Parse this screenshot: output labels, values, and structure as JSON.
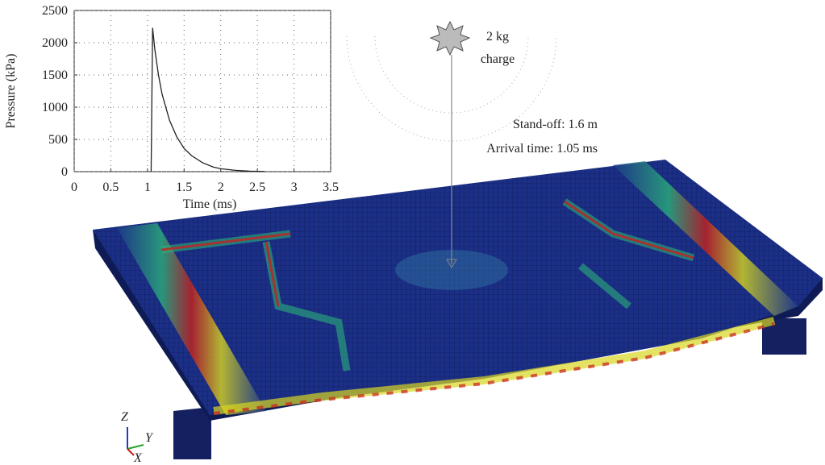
{
  "chart_data": {
    "type": "line",
    "xlabel": "Time (ms)",
    "ylabel": "Pressure (kPa)",
    "x": [
      1.05,
      1.07,
      1.1,
      1.15,
      1.2,
      1.3,
      1.4,
      1.5,
      1.6,
      1.75,
      1.9,
      2.0,
      2.2,
      2.4,
      2.6
    ],
    "values": [
      0,
      2230,
      1900,
      1500,
      1200,
      800,
      540,
      360,
      250,
      140,
      70,
      45,
      20,
      8,
      3
    ],
    "color": "#222222",
    "xlim": [
      0,
      3.5
    ],
    "ylim": [
      0,
      2500
    ],
    "xticks": [
      0,
      0.5,
      1,
      1.5,
      2,
      2.5,
      3,
      3.5
    ],
    "yticks": [
      0,
      500,
      1000,
      1500,
      2000,
      2500
    ],
    "grid": true,
    "annotations": {
      "charge_mass": "2 kg",
      "charge_label": "charge",
      "standoff": "Stand-off: 1.6 m",
      "arrival": "Arrival time: 1.05 ms"
    },
    "axes_triad": {
      "z": "Z",
      "y": "Y",
      "x": "X"
    }
  }
}
